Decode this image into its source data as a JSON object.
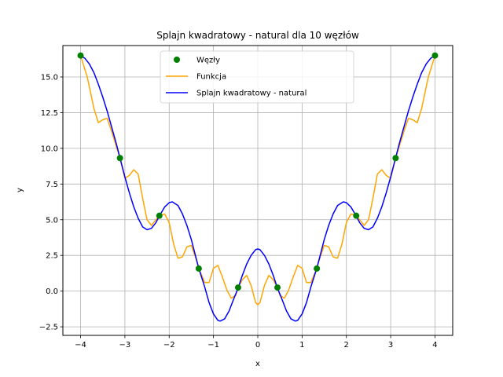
{
  "chart_data": {
    "type": "line",
    "title": "Splajn kwadratowy - natural dla 10 węzłów",
    "xlabel": "x",
    "ylabel": "y",
    "xlim": [
      -4.4,
      4.4
    ],
    "ylim": [
      -3.1,
      17.2
    ],
    "xticks": [
      -4,
      -3,
      -2,
      -1,
      0,
      1,
      2,
      3,
      4
    ],
    "xtick_labels": [
      "−4",
      "−3",
      "−2",
      "−1",
      "0",
      "1",
      "2",
      "3",
      "4"
    ],
    "yticks": [
      -2.5,
      0.0,
      2.5,
      5.0,
      7.5,
      10.0,
      12.5,
      15.0
    ],
    "ytick_labels": [
      "−2.5",
      "0.0",
      "2.5",
      "5.0",
      "7.5",
      "10.0",
      "12.5",
      "15.0"
    ],
    "grid": true,
    "legend_position": "upper-center",
    "legend": [
      {
        "label": "Węzły",
        "kind": "marker",
        "color": "#008000"
      },
      {
        "label": "Funkcja",
        "kind": "line",
        "color": "#ffa500"
      },
      {
        "label": "Splajn kwadratowy - natural",
        "kind": "line",
        "color": "#0000ff"
      }
    ],
    "nodes": {
      "name": "Węzły",
      "color": "#008000",
      "x": [
        -4.0,
        -3.111,
        -2.222,
        -1.333,
        -0.444,
        0.444,
        1.333,
        2.222,
        3.111,
        4.0
      ],
      "y": [
        16.5,
        9.32,
        5.28,
        1.58,
        0.25,
        0.25,
        1.58,
        5.28,
        9.32,
        16.5
      ]
    },
    "series": [
      {
        "name": "Funkcja",
        "color": "#ffa500",
        "x": [
          -4.0,
          -3.85,
          -3.7,
          -3.6,
          -3.5,
          -3.4,
          -3.3,
          -3.2,
          -3.11,
          -3.0,
          -2.9,
          -2.8,
          -2.7,
          -2.6,
          -2.5,
          -2.4,
          -2.3,
          -2.22,
          -2.1,
          -2.0,
          -1.9,
          -1.8,
          -1.7,
          -1.6,
          -1.5,
          -1.4,
          -1.33,
          -1.2,
          -1.1,
          -1.0,
          -0.9,
          -0.8,
          -0.7,
          -0.6,
          -0.5,
          -0.44,
          -0.35,
          -0.25,
          -0.15,
          -0.05,
          0.0,
          0.05,
          0.15,
          0.25,
          0.35,
          0.44,
          0.5,
          0.6,
          0.7,
          0.8,
          0.9,
          1.0,
          1.1,
          1.2,
          1.33,
          1.4,
          1.5,
          1.6,
          1.7,
          1.8,
          1.9,
          2.0,
          2.1,
          2.22,
          2.3,
          2.4,
          2.5,
          2.6,
          2.7,
          2.8,
          2.9,
          3.0,
          3.11,
          3.2,
          3.3,
          3.4,
          3.5,
          3.6,
          3.7,
          3.85,
          4.0
        ],
        "y": [
          16.5,
          15.0,
          12.8,
          11.8,
          12.0,
          12.1,
          11.2,
          10.2,
          9.3,
          7.9,
          8.1,
          8.5,
          8.2,
          6.5,
          5.0,
          4.6,
          5.0,
          5.3,
          5.4,
          4.8,
          3.3,
          2.3,
          2.4,
          3.1,
          3.2,
          2.3,
          1.6,
          0.6,
          0.6,
          1.6,
          1.8,
          1.0,
          0.1,
          -0.5,
          -0.3,
          0.25,
          0.8,
          1.1,
          0.4,
          -0.8,
          -0.95,
          -0.8,
          0.4,
          1.1,
          0.8,
          0.25,
          -0.3,
          -0.5,
          0.1,
          1.0,
          1.8,
          1.6,
          0.6,
          0.6,
          1.6,
          2.3,
          3.2,
          3.1,
          2.4,
          2.3,
          3.3,
          4.8,
          5.4,
          5.3,
          5.0,
          4.6,
          5.0,
          6.5,
          8.2,
          8.5,
          8.1,
          7.9,
          9.3,
          10.2,
          11.2,
          12.1,
          12.0,
          11.8,
          12.8,
          15.0,
          16.5
        ]
      },
      {
        "name": "Splajn kwadratowy - natural",
        "color": "#0000ff",
        "x": [
          -4.0,
          -3.9,
          -3.8,
          -3.7,
          -3.6,
          -3.5,
          -3.4,
          -3.3,
          -3.2,
          -3.11,
          -3.0,
          -2.9,
          -2.8,
          -2.7,
          -2.6,
          -2.5,
          -2.4,
          -2.3,
          -2.22,
          -2.1,
          -2.0,
          -1.93,
          -1.8,
          -1.7,
          -1.6,
          -1.5,
          -1.4,
          -1.33,
          -1.2,
          -1.1,
          -1.0,
          -0.9,
          -0.85,
          -0.75,
          -0.65,
          -0.55,
          -0.44,
          -0.35,
          -0.25,
          -0.15,
          -0.05,
          0.0,
          0.05,
          0.15,
          0.25,
          0.35,
          0.44,
          0.55,
          0.65,
          0.75,
          0.85,
          0.9,
          1.0,
          1.1,
          1.2,
          1.33,
          1.4,
          1.5,
          1.6,
          1.7,
          1.8,
          1.93,
          2.0,
          2.1,
          2.22,
          2.3,
          2.4,
          2.5,
          2.6,
          2.7,
          2.8,
          2.9,
          3.0,
          3.11,
          3.2,
          3.3,
          3.4,
          3.5,
          3.6,
          3.7,
          3.8,
          3.9,
          4.0
        ],
        "y": [
          16.5,
          16.3,
          15.9,
          15.3,
          14.5,
          13.6,
          12.6,
          11.5,
          10.4,
          9.32,
          8.0,
          6.9,
          5.9,
          5.1,
          4.5,
          4.3,
          4.4,
          4.8,
          5.28,
          5.9,
          6.2,
          6.25,
          6.0,
          5.4,
          4.6,
          3.6,
          2.4,
          1.58,
          0.3,
          -0.8,
          -1.6,
          -2.05,
          -2.1,
          -1.95,
          -1.4,
          -0.6,
          0.25,
          1.1,
          1.9,
          2.5,
          2.9,
          2.95,
          2.9,
          2.5,
          1.9,
          1.1,
          0.25,
          -0.6,
          -1.4,
          -1.95,
          -2.1,
          -2.05,
          -1.6,
          -0.8,
          0.3,
          1.58,
          2.4,
          3.6,
          4.6,
          5.4,
          6.0,
          6.25,
          6.2,
          5.9,
          5.28,
          4.8,
          4.4,
          4.3,
          4.5,
          5.1,
          5.9,
          6.9,
          8.0,
          9.32,
          10.4,
          11.5,
          12.6,
          13.6,
          14.5,
          15.3,
          15.9,
          16.3,
          16.5
        ]
      }
    ]
  }
}
